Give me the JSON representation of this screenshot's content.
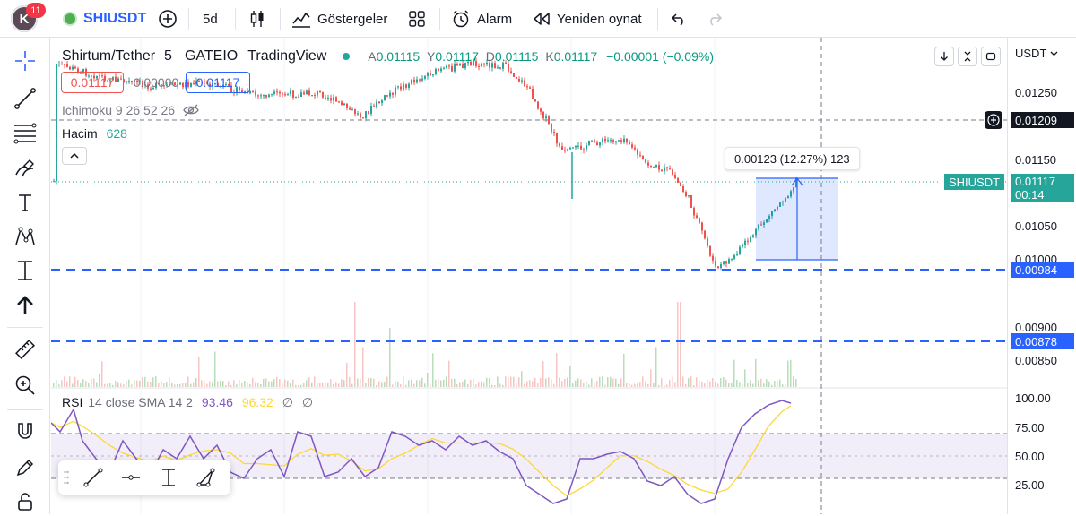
{
  "topbar": {
    "avatar_letter": "K",
    "notifications": "11",
    "symbol": "SHIUSDT",
    "interval": "5d",
    "indicators_label": "Göstergeler",
    "alarm_label": "Alarm",
    "replay_label": "Yeniden oynat"
  },
  "legend": {
    "title": "Shirtum/Tether",
    "interval": "5",
    "exchange": "GATEIO",
    "source": "TradingView",
    "open_key": "A",
    "open": "0.01115",
    "high_key": "Y",
    "high": "0.01117",
    "low_key": "D",
    "low": "0.01115",
    "close_key": "K",
    "close": "0.01117",
    "change": "−0.00001 (−0.09%)",
    "sell_price": "0.01117",
    "spread": "0.00000",
    "buy_price": "0.01117",
    "ichimoku": "Ichimoku 9 26 52 26",
    "volume_label": "Hacim",
    "volume_value": "628"
  },
  "measure": {
    "label": "0.00123 (12.27%) 123"
  },
  "rsi": {
    "name": "RSI",
    "params": "14 close SMA 14 2",
    "value": "93.46",
    "sma_value": "96.32",
    "extra1": "∅",
    "extra2": "∅"
  },
  "axis": {
    "currency": "USDT",
    "labels": [
      "0.01250",
      "0.01150",
      "0.01050",
      "0.01000",
      "0.00900",
      "0.00850"
    ],
    "crosshair_price": "0.01209",
    "symbol_tag": "SHIUSDT",
    "last_price": "0.01117",
    "countdown": "00:14",
    "line1_price": "0.00984",
    "line2_price": "0.00878",
    "rsi_labels": [
      "100.00",
      "75.00",
      "50.00",
      "25.00"
    ]
  },
  "colors": {
    "up": "#26a69a",
    "down": "#ef5350",
    "accent": "#2962ff",
    "rsi_line": "#7e57c2",
    "rsi_sma": "#fdd835",
    "hline": "#2962ff",
    "tag_green": "#26a69a"
  },
  "icons": {
    "topbar": [
      "plus-circle-icon",
      "candles-icon",
      "indicators-icon",
      "templates-icon",
      "alarm-icon",
      "replay-icon",
      "undo-icon",
      "redo-icon"
    ],
    "left": [
      "crosshair-icon",
      "trendline-icon",
      "fib-icon",
      "brush-icon",
      "text-icon",
      "pattern-icon",
      "measure-icon",
      "arrow-up-icon",
      "ruler-icon",
      "zoom-icon",
      "magnet-icon",
      "lock-draw-icon",
      "lock-icon"
    ]
  }
}
